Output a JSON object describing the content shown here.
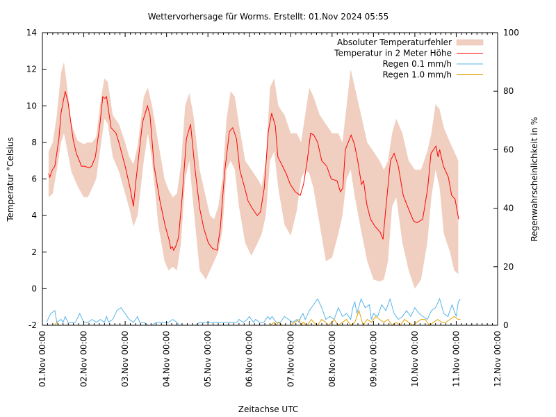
{
  "chart_data": {
    "type": "line",
    "title": "Wettervorhersage für Worms. Erstellt: 01.Nov 2024 05:55",
    "xlabel": "Zeitachse UTC",
    "ylabel": "Temperatur °Celsius",
    "y2label": "Regenwahrscheinlichkeit in %",
    "xlim_days": [
      0,
      11
    ],
    "ylim": [
      -2,
      14
    ],
    "y2lim": [
      0,
      100
    ],
    "x_ticks": [
      "01.Nov 00:00",
      "02.Nov 00:00",
      "03.Nov 00:00",
      "04.Nov 00:00",
      "05.Nov 00:00",
      "06.Nov 00:00",
      "07.Nov 00:00",
      "08.Nov 00:00",
      "09.Nov 00:00",
      "10.Nov 00:00",
      "11.Nov 00:00",
      "12.Nov 00:00"
    ],
    "y_ticks": [
      "-2",
      "0",
      "2",
      "4",
      "6",
      "8",
      "10",
      "12",
      "14"
    ],
    "y2_ticks": [
      "0",
      "20",
      "40",
      "60",
      "80",
      "100"
    ],
    "legend_position": "top-right",
    "legend": [
      {
        "label": "Absoluter Temperaturfehler",
        "color": "#f0cfc0",
        "kind": "band"
      },
      {
        "label": "Temperatur in 2 Meter Höhe",
        "color": "#ff0000",
        "kind": "line"
      },
      {
        "label": "Regen 0.1 mm/h",
        "color": "#56b4e9",
        "kind": "line"
      },
      {
        "label": "Regen 1.0 mm/h",
        "color": "#e69f00",
        "kind": "line"
      }
    ],
    "series": [
      {
        "name": "Temperatur in 2 Meter Höhe",
        "axis": "y",
        "x_days": [
          0.15,
          0.18,
          0.24,
          0.3,
          0.4,
          0.45,
          0.55,
          0.62,
          0.74,
          0.82,
          0.91,
          0.94,
          1.02,
          1.13,
          1.19,
          1.28,
          1.39,
          1.46,
          1.51,
          1.55,
          1.66,
          1.78,
          1.86,
          2.0,
          2.12,
          2.2,
          2.25,
          2.42,
          2.54,
          2.6,
          2.7,
          2.84,
          2.97,
          3.07,
          3.1,
          3.14,
          3.17,
          3.22,
          3.29,
          3.38,
          3.48,
          3.58,
          3.68,
          3.8,
          3.9,
          4.01,
          4.11,
          4.22,
          4.3,
          4.4,
          4.52,
          4.6,
          4.69,
          4.77,
          4.89,
          4.97,
          5.07,
          5.19,
          5.27,
          5.36,
          5.46,
          5.54,
          5.63,
          5.69,
          5.78,
          5.89,
          5.99,
          6.11,
          6.23,
          6.31,
          6.4,
          6.48,
          6.56,
          6.65,
          6.75,
          6.87,
          6.98,
          7.12,
          7.2,
          7.26,
          7.32,
          7.46,
          7.54,
          7.62,
          7.71,
          7.76,
          7.84,
          7.93,
          8.04,
          8.16,
          8.23,
          8.3,
          8.41,
          8.5,
          8.6,
          8.72,
          8.84,
          8.97,
          9.05,
          9.19,
          9.31,
          9.39,
          9.51,
          9.56,
          9.6,
          9.69,
          9.81,
          9.89,
          9.97,
          10.06
        ],
        "values": [
          6.3,
          6.1,
          6.5,
          6.7,
          8.2,
          9.6,
          10.8,
          10.2,
          8.2,
          7.4,
          6.9,
          6.7,
          6.7,
          6.6,
          6.7,
          7.2,
          9.0,
          10.5,
          10.4,
          10.5,
          8.8,
          8.5,
          7.9,
          6.7,
          5.5,
          4.5,
          5.7,
          9.1,
          10.0,
          9.5,
          6.7,
          4.8,
          3.4,
          2.6,
          2.2,
          2.3,
          2.1,
          2.3,
          2.8,
          5.1,
          8.2,
          9.0,
          6.7,
          4.4,
          3.3,
          2.5,
          2.2,
          2.1,
          3.3,
          6.3,
          8.6,
          8.8,
          8.2,
          6.5,
          5.5,
          4.8,
          4.4,
          4.0,
          4.2,
          5.5,
          8.6,
          9.6,
          8.9,
          7.2,
          6.8,
          6.3,
          5.7,
          5.3,
          5.1,
          5.7,
          7.0,
          8.5,
          8.4,
          8.0,
          7.0,
          6.7,
          6.0,
          5.9,
          5.3,
          5.5,
          7.6,
          8.4,
          7.9,
          7.0,
          5.7,
          5.9,
          4.6,
          3.8,
          3.4,
          3.1,
          2.7,
          4.4,
          7.0,
          7.4,
          6.7,
          5.1,
          4.4,
          3.7,
          3.6,
          3.8,
          5.5,
          7.4,
          7.8,
          7.2,
          7.6,
          6.7,
          6.1,
          5.1,
          4.9,
          3.8
        ]
      },
      {
        "name": "Absoluter Temperaturfehler",
        "axis": "y",
        "x_days": [
          0.15,
          0.25,
          0.35,
          0.45,
          0.52,
          0.6,
          0.7,
          0.85,
          1.0,
          1.1,
          1.2,
          1.3,
          1.42,
          1.5,
          1.58,
          1.7,
          1.85,
          2.0,
          2.1,
          2.2,
          2.3,
          2.45,
          2.55,
          2.65,
          2.8,
          2.95,
          3.05,
          3.15,
          3.25,
          3.35,
          3.45,
          3.55,
          3.65,
          3.8,
          3.95,
          4.05,
          4.15,
          4.25,
          4.35,
          4.45,
          4.55,
          4.65,
          4.75,
          4.9,
          5.05,
          5.2,
          5.3,
          5.4,
          5.5,
          5.6,
          5.7,
          5.85,
          6.0,
          6.15,
          6.25,
          6.35,
          6.45,
          6.55,
          6.7,
          6.85,
          7.0,
          7.15,
          7.25,
          7.35,
          7.45,
          7.55,
          7.7,
          7.85,
          8.0,
          8.15,
          8.25,
          8.35,
          8.45,
          8.55,
          8.7,
          8.85,
          9.0,
          9.15,
          9.3,
          9.4,
          9.5,
          9.6,
          9.7,
          9.85,
          9.95,
          10.05
        ],
        "upper": [
          7.5,
          8.0,
          9.5,
          11.8,
          12.4,
          11.0,
          9.0,
          8.1,
          7.9,
          8.0,
          8.0,
          8.3,
          10.5,
          11.5,
          11.3,
          9.5,
          9.0,
          8.0,
          7.2,
          6.8,
          7.8,
          10.5,
          11.0,
          10.0,
          8.0,
          6.0,
          5.4,
          5.0,
          5.2,
          6.8,
          10.0,
          10.7,
          9.5,
          6.5,
          5.0,
          4.0,
          3.8,
          4.5,
          6.0,
          9.3,
          10.8,
          10.5,
          9.0,
          7.0,
          6.5,
          6.0,
          5.6,
          7.0,
          11.0,
          11.5,
          10.0,
          9.5,
          8.5,
          8.5,
          8.0,
          9.5,
          11.0,
          10.5,
          9.5,
          9.0,
          8.5,
          8.5,
          8.0,
          10.0,
          12.0,
          11.0,
          9.5,
          8.0,
          7.5,
          7.0,
          6.5,
          7.0,
          8.5,
          9.3,
          8.5,
          7.0,
          6.5,
          6.5,
          7.5,
          8.5,
          10.1,
          9.8,
          8.8,
          8.0,
          7.5,
          7.0
        ],
        "lower": [
          5.0,
          5.2,
          6.5,
          8.0,
          8.5,
          7.6,
          6.4,
          5.6,
          5.0,
          5.0,
          5.5,
          6.0,
          8.0,
          9.3,
          9.0,
          7.2,
          6.4,
          5.2,
          4.4,
          3.4,
          4.0,
          7.0,
          8.5,
          7.0,
          3.5,
          1.5,
          1.0,
          1.2,
          1.0,
          2.5,
          6.0,
          7.0,
          4.5,
          1.0,
          0.5,
          1.0,
          1.5,
          2.0,
          3.2,
          6.5,
          7.0,
          6.5,
          4.5,
          2.5,
          1.8,
          2.5,
          3.0,
          4.0,
          7.0,
          7.5,
          5.5,
          3.5,
          2.9,
          4.3,
          6.0,
          6.5,
          6.3,
          5.5,
          3.5,
          1.5,
          1.7,
          3.0,
          4.0,
          6.0,
          6.5,
          5.0,
          3.2,
          1.5,
          0.5,
          0.4,
          0.5,
          1.5,
          4.5,
          5.0,
          2.5,
          1.0,
          0.0,
          0.5,
          2.5,
          5.0,
          6.5,
          5.5,
          3.0,
          2.0,
          1.0,
          0.8
        ]
      },
      {
        "name": "Regen 0.1 mm/h",
        "axis": "y2",
        "x_days": [
          0.1,
          0.2,
          0.3,
          0.35,
          0.45,
          0.5,
          0.55,
          0.62,
          0.7,
          0.8,
          0.9,
          1.0,
          1.1,
          1.2,
          1.3,
          1.4,
          1.5,
          1.55,
          1.6,
          1.7,
          1.8,
          1.9,
          2.0,
          2.1,
          2.2,
          2.3,
          2.35,
          2.45,
          2.55,
          2.65,
          2.75,
          2.85,
          2.95,
          3.05,
          3.15,
          3.25,
          3.3,
          3.5,
          3.7,
          3.8,
          3.9,
          4.0,
          4.05,
          4.1,
          4.2,
          4.3,
          4.4,
          4.5,
          4.6,
          4.7,
          4.75,
          4.85,
          4.95,
          5.0,
          5.1,
          5.15,
          5.25,
          5.35,
          5.45,
          5.5,
          5.55,
          5.65,
          5.75,
          5.85,
          5.95,
          6.05,
          6.15,
          6.2,
          6.25,
          6.3,
          6.35,
          6.45,
          6.55,
          6.65,
          6.75,
          6.85,
          6.95,
          7.05,
          7.1,
          7.15,
          7.25,
          7.35,
          7.45,
          7.5,
          7.55,
          7.6,
          7.7,
          7.8,
          7.9,
          7.95,
          8.0,
          8.1,
          8.2,
          8.3,
          8.4,
          8.5,
          8.6,
          8.7,
          8.8,
          8.9,
          9.0,
          9.1,
          9.2,
          9.3,
          9.4,
          9.5,
          9.6,
          9.7,
          9.8,
          9.9,
          10.0,
          10.05,
          10.1
        ],
        "values": [
          1,
          4,
          5,
          1,
          2,
          1,
          3,
          1,
          1,
          1,
          4,
          1,
          1,
          2,
          1,
          2,
          1,
          3,
          1,
          2,
          5,
          6,
          4,
          2,
          1,
          3,
          1,
          1,
          0,
          0,
          1,
          1,
          1,
          1,
          2,
          1,
          0,
          0,
          0,
          1,
          1,
          1,
          1,
          1,
          1,
          1,
          1,
          1,
          1,
          1,
          2,
          1,
          2,
          3,
          1,
          2,
          1,
          1,
          3,
          2,
          3,
          1,
          1,
          3,
          2,
          1,
          2,
          1,
          3,
          4,
          2,
          5,
          7,
          9,
          6,
          2,
          3,
          2,
          4,
          6,
          3,
          4,
          2,
          6,
          8,
          4,
          9,
          6,
          7,
          2,
          4,
          3,
          7,
          5,
          9,
          4,
          2,
          3,
          5,
          3,
          6,
          4,
          3,
          2,
          5,
          6,
          9,
          4,
          3,
          7,
          3,
          8,
          9,
          6,
          9
        ]
      },
      {
        "name": "Regen 1.0 mm/h",
        "axis": "y2",
        "x_days": [
          0.3,
          0.35,
          0.4,
          0.5,
          5.5,
          5.6,
          5.65,
          5.7,
          5.8,
          5.95,
          6.0,
          6.1,
          6.2,
          6.25,
          6.3,
          6.4,
          6.5,
          6.55,
          6.65,
          6.75,
          6.85,
          6.9,
          7.0,
          7.05,
          7.15,
          7.25,
          7.35,
          7.4,
          7.45,
          7.55,
          7.65,
          7.75,
          7.85,
          7.95,
          8.05,
          8.15,
          8.25,
          8.35,
          8.45,
          8.55,
          8.65,
          8.75,
          8.85,
          8.95,
          9.05,
          9.15,
          9.25,
          9.35,
          9.45,
          9.55,
          9.65,
          9.75,
          9.85,
          9.95,
          10.05,
          10.1
        ],
        "values": [
          0,
          1,
          0,
          0,
          0,
          1,
          0,
          1,
          0,
          0,
          0,
          1,
          2,
          0,
          1,
          0,
          2,
          1,
          0,
          2,
          1,
          0,
          1,
          2,
          0,
          1,
          2,
          1,
          0,
          1,
          5,
          0,
          2,
          1,
          3,
          2,
          1,
          2,
          0,
          1,
          0,
          2,
          1,
          0,
          1,
          2,
          2,
          0,
          1,
          2,
          1,
          1,
          2,
          3,
          2,
          2
        ]
      }
    ]
  }
}
